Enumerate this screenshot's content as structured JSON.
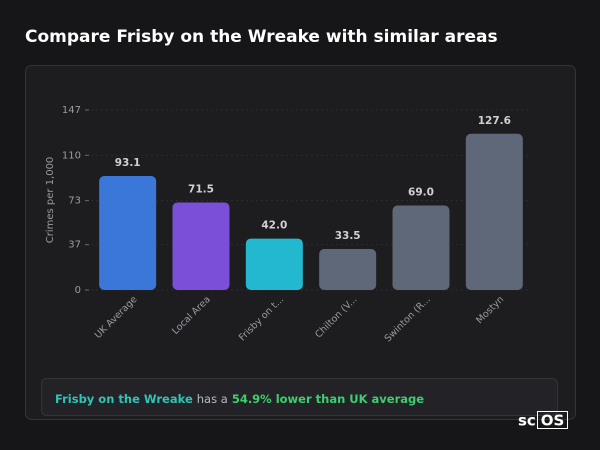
{
  "chart_data": {
    "type": "bar",
    "title": "Compare Frisby on the Wreake with similar areas",
    "y_label": "Crimes per 1,000",
    "categories": [
      "UK Average",
      "Local Area",
      "Frisby on t...",
      "Chilton (V...",
      "Swinton (R...",
      "Mostyn"
    ],
    "values": [
      93.1,
      71.5,
      42.0,
      33.5,
      69.0,
      127.6
    ],
    "value_labels": [
      "93.1",
      "71.5",
      "42.0",
      "33.5",
      "69.0",
      "127.6"
    ],
    "colors": [
      "#3b76d9",
      "#7b4fd8",
      "#22b8d0",
      "#5f6878",
      "#5f6878",
      "#5f6878"
    ],
    "ylim": [
      0,
      147
    ],
    "yticks": [
      0,
      37,
      73,
      110,
      147
    ],
    "grid": true
  },
  "summary": {
    "place": "Frisby on the Wreake",
    "middle": "has a",
    "finding": "54.9% lower than UK average"
  },
  "logo": {
    "left": "sc",
    "boxed": "OS"
  }
}
